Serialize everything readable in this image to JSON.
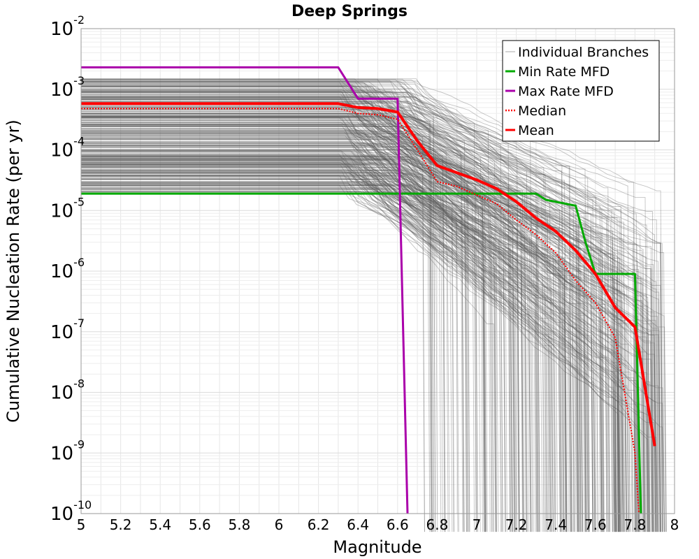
{
  "chart_data": {
    "type": "line",
    "title": "Deep Springs",
    "xlabel": "Magnitude",
    "ylabel": "Cumulative Nucleation Rate (per yr)",
    "xlim": [
      5,
      8
    ],
    "ylim": [
      1e-10,
      0.01
    ],
    "yscale": "log",
    "grid": true,
    "legend_position": "top-right",
    "x_ticks": [
      "5",
      "5.2",
      "5.4",
      "5.6",
      "5.8",
      "6",
      "6.2",
      "6.4",
      "6.6",
      "6.8",
      "7",
      "7.2",
      "7.4",
      "7.6",
      "7.8",
      "8"
    ],
    "y_ticks": [
      {
        "base": "10",
        "exp": "-2",
        "value": 0.01
      },
      {
        "base": "10",
        "exp": "-3",
        "value": 0.001
      },
      {
        "base": "10",
        "exp": "-4",
        "value": 0.0001
      },
      {
        "base": "10",
        "exp": "-5",
        "value": 1e-05
      },
      {
        "base": "10",
        "exp": "-6",
        "value": 1e-06
      },
      {
        "base": "10",
        "exp": "-7",
        "value": 1e-07
      },
      {
        "base": "10",
        "exp": "-8",
        "value": 1e-08
      },
      {
        "base": "10",
        "exp": "-9",
        "value": 1e-09
      },
      {
        "base": "10",
        "exp": "-10",
        "value": 1e-10
      }
    ],
    "series": [
      {
        "name": "Min Rate MFD",
        "color": "#00aa00",
        "style": "solid",
        "x": [
          5.0,
          6.3,
          6.6,
          7.3,
          7.35,
          7.5,
          7.55,
          7.6,
          7.8,
          7.83
        ],
        "y": [
          1.9e-05,
          1.9e-05,
          1.9e-05,
          1.9e-05,
          1.5e-05,
          1.2e-05,
          3e-06,
          9e-07,
          9e-07,
          1e-10
        ]
      },
      {
        "name": "Max Rate MFD",
        "color": "#aa00aa",
        "style": "solid",
        "x": [
          5.0,
          6.3,
          6.4,
          6.6,
          6.65
        ],
        "y": [
          0.0023,
          0.0023,
          0.0007,
          0.0007,
          1e-10
        ]
      },
      {
        "name": "Median",
        "color": "#ff0000",
        "style": "dotted",
        "x": [
          5.0,
          6.3,
          6.4,
          6.5,
          6.6,
          6.7,
          6.8,
          6.9,
          7.0,
          7.1,
          7.2,
          7.3,
          7.4,
          7.5,
          7.6,
          7.7,
          7.8,
          7.82
        ],
        "y": [
          0.00048,
          0.00048,
          0.0004,
          0.00038,
          0.00032,
          0.0001,
          3e-05,
          2.5e-05,
          1.8e-05,
          1.3e-05,
          7e-06,
          4e-06,
          2e-06,
          7e-07,
          3e-07,
          8e-08,
          1e-09,
          1e-10
        ]
      },
      {
        "name": "Mean",
        "color": "#ff0000",
        "style": "solid",
        "x": [
          5.0,
          6.3,
          6.4,
          6.5,
          6.6,
          6.7,
          6.8,
          6.9,
          7.0,
          7.1,
          7.2,
          7.3,
          7.4,
          7.5,
          7.6,
          7.7,
          7.8,
          7.9
        ],
        "y": [
          0.00058,
          0.00058,
          0.0005,
          0.00048,
          0.00042,
          0.00014,
          5.5e-05,
          4.2e-05,
          3.2e-05,
          2.3e-05,
          1.4e-05,
          7.5e-06,
          4.5e-06,
          2.2e-06,
          9e-07,
          2.5e-07,
          1.2e-07,
          1.3e-09
        ]
      }
    ],
    "branches": {
      "name": "Individual Branches",
      "color": "#555555",
      "count": 380,
      "plateau_range": [
        2e-05,
        0.0015
      ],
      "plateau_end": [
        6.3,
        6.7
      ],
      "cutoff_range": [
        6.7,
        7.95
      ]
    },
    "legend": [
      {
        "label": "Individual Branches",
        "color": "#aaaaaa",
        "style": "thin"
      },
      {
        "label": "Min Rate MFD",
        "color": "#00aa00",
        "style": "solid"
      },
      {
        "label": "Max Rate MFD",
        "color": "#aa00aa",
        "style": "solid"
      },
      {
        "label": "Median",
        "color": "#ff0000",
        "style": "dotted"
      },
      {
        "label": "Mean",
        "color": "#ff0000",
        "style": "solid"
      }
    ]
  }
}
